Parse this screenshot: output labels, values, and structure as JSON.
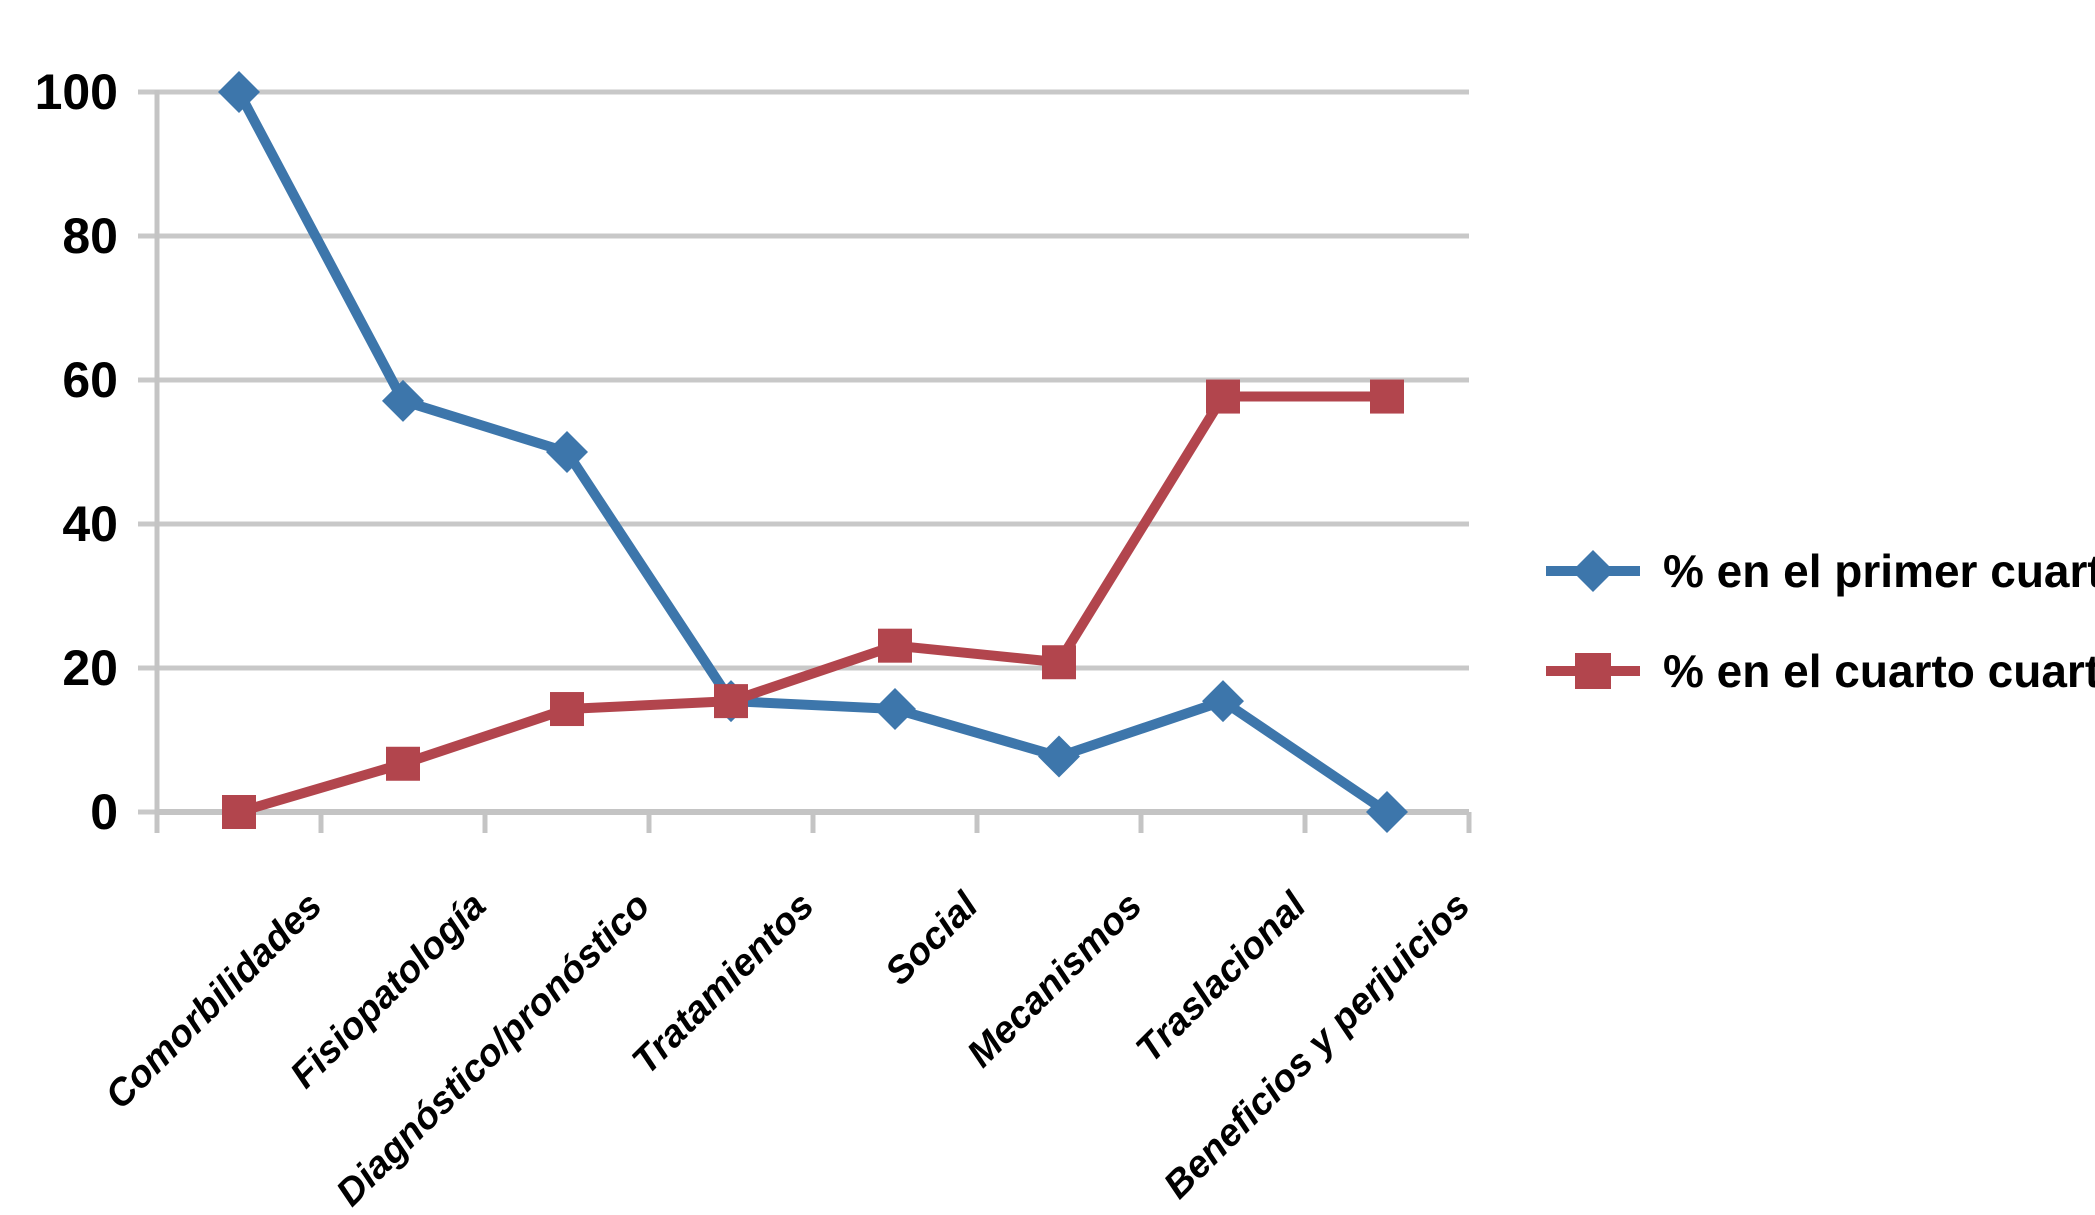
{
  "chart_data": {
    "type": "line",
    "title": "",
    "xlabel": "",
    "ylabel": "",
    "categories": [
      "Comorbilidades",
      "Fisiopatología",
      "Diagnóstico/pronóstico",
      "Tratamientos",
      "Social",
      "Mecanismos",
      "Traslacional",
      "Beneficios y perjuicios"
    ],
    "series": [
      {
        "name": "% en el primer cuartil",
        "marker": "diamond",
        "color": "#3D76AB",
        "values": [
          100,
          57.1,
          50,
          15.4,
          14.3,
          7.7,
          15.4,
          0
        ]
      },
      {
        "name": "% en el cuarto cuartil",
        "marker": "square",
        "color": "#B2454D",
        "values": [
          0,
          6.7,
          14.3,
          15.4,
          23.1,
          20.8,
          57.7,
          57.7
        ]
      }
    ],
    "ylim": [
      0,
      100
    ],
    "yticks": [
      0,
      20,
      40,
      60,
      80,
      100
    ],
    "grid": "horizontal-only",
    "legend_position": "right-middle",
    "colors": {
      "gridline": "#C8C8C8",
      "axis": "#C4C4C4",
      "text": "#000000",
      "background": "#FFFFFF"
    }
  }
}
